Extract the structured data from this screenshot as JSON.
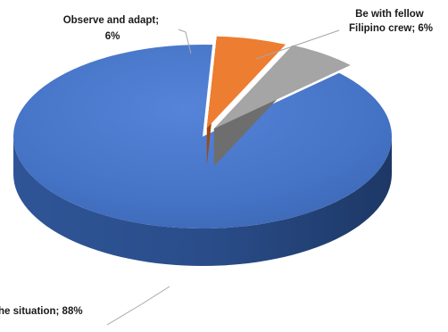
{
  "chart_data": {
    "type": "pie",
    "style": "3d-exploded",
    "slices": [
      {
        "name": "Observe and adapt",
        "value": 6,
        "label_line1": "Observe and adapt;",
        "label_line2": "6%",
        "color": "#ed7d31",
        "side_color": "#9c4a14"
      },
      {
        "name": "Be with fellow Filipino crew",
        "value": 6,
        "label_line1": "Be with fellow",
        "label_line2": "Filipino crew; 6%",
        "color": "#a5a5a5",
        "side_color": "#6e6e6e"
      },
      {
        "name": "the situation",
        "value": 88,
        "label_line1": "he situation; 88%",
        "color": "#4472c4",
        "side_color": "#24407a"
      }
    ],
    "legend": "none"
  }
}
